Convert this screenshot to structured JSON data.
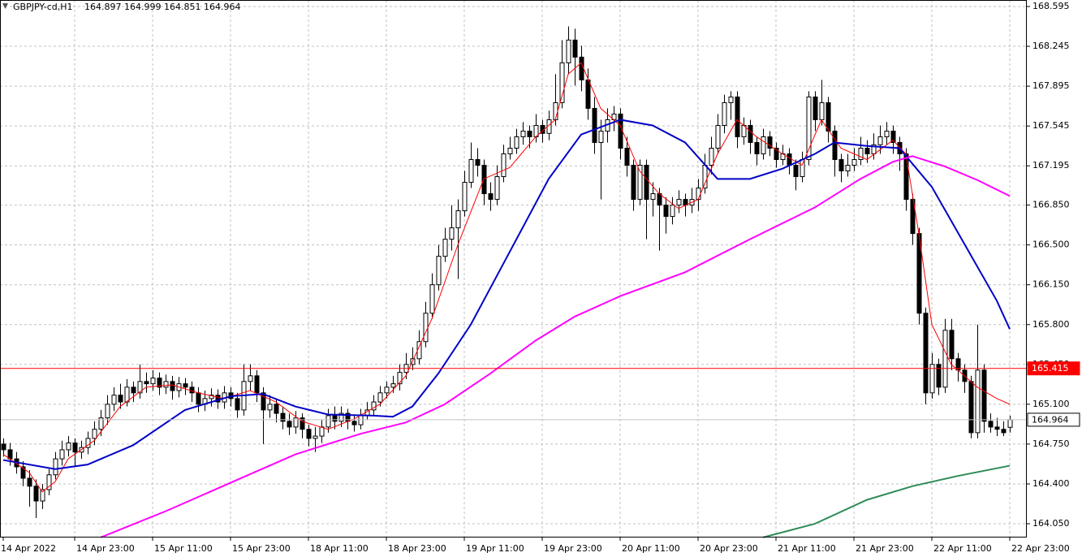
{
  "chart_data": {
    "type": "candlestick",
    "symbol": "GBPJPY-cd,H1",
    "ylim": [
      163.929,
      168.652
    ],
    "yticks": [
      168.595,
      168.245,
      167.895,
      167.545,
      167.195,
      {
        "value": 166.85,
        "label": "166.850"
      },
      {
        "value": 166.5,
        "label": "166.500"
      },
      {
        "value": 166.15,
        "label": "166.150"
      },
      {
        "value": 165.8,
        "label": "165.800"
      },
      {
        "value": 165.45,
        "label": "165.450"
      },
      {
        "value": 165.1,
        "label": "165.100"
      },
      {
        "value": 164.75,
        "label": "164.750"
      },
      {
        "value": 164.4,
        "label": "164.400"
      },
      {
        "value": 164.05,
        "label": "164.050"
      }
    ],
    "grid": true,
    "categories": [
      "14 Apr 2022",
      null,
      null,
      null,
      null,
      null,
      null,
      null,
      null,
      null,
      null,
      "14 Apr 23:00",
      null,
      null,
      null,
      null,
      null,
      null,
      null,
      null,
      null,
      null,
      null,
      "15 Apr 11:00",
      null,
      null,
      null,
      null,
      null,
      null,
      null,
      null,
      null,
      null,
      null,
      "15 Apr 23:00",
      null,
      null,
      null,
      null,
      null,
      null,
      null,
      null,
      null,
      null,
      null,
      "18 Apr 11:00",
      null,
      null,
      null,
      null,
      null,
      null,
      null,
      null,
      null,
      null,
      null,
      "18 Apr 23:00",
      null,
      null,
      null,
      null,
      null,
      null,
      null,
      null,
      null,
      null,
      null,
      "19 Apr 11:00",
      null,
      null,
      null,
      null,
      null,
      null,
      null,
      null,
      null,
      null,
      null,
      "19 Apr 23:00",
      null,
      null,
      null,
      null,
      null,
      null,
      null,
      null,
      null,
      null,
      null,
      "20 Apr 11:00",
      null,
      null,
      null,
      null,
      null,
      null,
      null,
      null,
      null,
      null,
      null,
      "20 Apr 23:00",
      null,
      null,
      null,
      null,
      null,
      null,
      null,
      null,
      null,
      null,
      null,
      "21 Apr 11:00",
      null,
      null,
      null,
      null,
      null,
      null,
      null,
      null,
      null,
      null,
      null,
      "21 Apr 23:00",
      null,
      null,
      null,
      null,
      null,
      null,
      null,
      null,
      null,
      null,
      null,
      "22 Apr 11:00",
      null,
      null,
      null,
      null,
      null,
      null,
      null,
      null,
      null,
      null,
      null,
      "22 Apr 23:00"
    ],
    "ohlc": [
      [
        164.75,
        164.8,
        164.64,
        164.7
      ],
      [
        164.7,
        164.76,
        164.56,
        164.62
      ],
      [
        164.62,
        164.68,
        164.49,
        164.55
      ],
      [
        164.55,
        164.6,
        164.38,
        164.45
      ],
      [
        164.45,
        164.52,
        164.2,
        164.38
      ],
      [
        164.38,
        164.44,
        164.1,
        164.25
      ],
      [
        164.25,
        164.4,
        164.18,
        164.35
      ],
      [
        164.35,
        164.53,
        164.3,
        164.48
      ],
      [
        164.48,
        164.68,
        164.44,
        164.62
      ],
      [
        164.62,
        164.78,
        164.56,
        164.7
      ],
      [
        164.7,
        164.82,
        164.64,
        164.76
      ],
      [
        164.76,
        164.8,
        164.55,
        164.68
      ],
      [
        164.68,
        164.78,
        164.62,
        164.72
      ],
      [
        164.72,
        164.86,
        164.66,
        164.8
      ],
      [
        164.8,
        164.95,
        164.74,
        164.88
      ],
      [
        164.88,
        165.05,
        164.82,
        164.98
      ],
      [
        164.98,
        165.18,
        164.92,
        165.1
      ],
      [
        165.1,
        165.25,
        165.04,
        165.18
      ],
      [
        165.18,
        165.28,
        165.06,
        165.12
      ],
      [
        165.12,
        165.32,
        165.08,
        165.25
      ],
      [
        165.25,
        165.3,
        165.12,
        165.2
      ],
      [
        165.2,
        165.45,
        165.15,
        165.3
      ],
      [
        165.3,
        165.38,
        165.2,
        165.28
      ],
      [
        165.28,
        165.4,
        165.22,
        165.33
      ],
      [
        165.33,
        165.38,
        165.18,
        165.25
      ],
      [
        165.25,
        165.36,
        165.19,
        165.3
      ],
      [
        165.3,
        165.35,
        165.14,
        165.22
      ],
      [
        165.22,
        165.34,
        165.16,
        165.28
      ],
      [
        165.28,
        165.33,
        165.18,
        165.25
      ],
      [
        165.25,
        165.3,
        165.12,
        165.2
      ],
      [
        165.2,
        165.25,
        165.03,
        165.1
      ],
      [
        165.1,
        165.22,
        165.04,
        165.15
      ],
      [
        165.15,
        165.24,
        165.08,
        165.18
      ],
      [
        165.18,
        165.23,
        165.06,
        165.12
      ],
      [
        165.12,
        165.26,
        165.06,
        165.2
      ],
      [
        165.2,
        165.25,
        165.08,
        165.15
      ],
      [
        165.15,
        165.2,
        164.98,
        165.05
      ],
      [
        165.05,
        165.45,
        165.0,
        165.3
      ],
      [
        165.3,
        165.45,
        165.22,
        165.35
      ],
      [
        165.35,
        165.4,
        165.12,
        165.2
      ],
      [
        165.2,
        165.25,
        164.75,
        165.05
      ],
      [
        165.05,
        165.18,
        164.98,
        165.1
      ],
      [
        165.1,
        165.15,
        164.94,
        165.02
      ],
      [
        165.02,
        165.08,
        164.88,
        164.95
      ],
      [
        164.95,
        165.02,
        164.83,
        164.9
      ],
      [
        164.9,
        165.04,
        164.84,
        164.98
      ],
      [
        164.98,
        165.02,
        164.8,
        164.88
      ],
      [
        164.88,
        164.92,
        164.73,
        164.8
      ],
      [
        164.8,
        164.9,
        164.68,
        164.82
      ],
      [
        164.82,
        164.96,
        164.76,
        164.9
      ],
      [
        164.9,
        165.06,
        164.85,
        165.0
      ],
      [
        165.0,
        165.08,
        164.88,
        164.95
      ],
      [
        164.95,
        165.08,
        164.9,
        165.02
      ],
      [
        165.02,
        165.06,
        164.88,
        164.95
      ],
      [
        164.95,
        165.0,
        164.86,
        164.92
      ],
      [
        164.92,
        165.06,
        164.88,
        165.0
      ],
      [
        165.0,
        165.12,
        164.96,
        165.05
      ],
      [
        165.05,
        165.18,
        165.0,
        165.12
      ],
      [
        165.12,
        165.26,
        165.08,
        165.2
      ],
      [
        165.2,
        165.3,
        165.15,
        165.25
      ],
      [
        165.25,
        165.35,
        165.2,
        165.28
      ],
      [
        165.28,
        165.45,
        165.22,
        165.38
      ],
      [
        165.38,
        165.55,
        165.32,
        165.45
      ],
      [
        165.45,
        165.6,
        165.4,
        165.5
      ],
      [
        165.5,
        165.75,
        165.45,
        165.65
      ],
      [
        165.65,
        166.0,
        165.6,
        165.9
      ],
      [
        165.9,
        166.25,
        165.85,
        166.15
      ],
      [
        166.15,
        166.5,
        166.1,
        166.4
      ],
      [
        166.4,
        166.65,
        166.35,
        166.55
      ],
      [
        166.55,
        166.85,
        166.45,
        166.65
      ],
      [
        166.65,
        166.9,
        166.2,
        166.8
      ],
      [
        166.8,
        167.15,
        166.75,
        167.05
      ],
      [
        167.05,
        167.4,
        167.0,
        167.25
      ],
      [
        167.25,
        167.35,
        167.1,
        167.2
      ],
      [
        167.2,
        167.25,
        166.85,
        166.95
      ],
      [
        166.95,
        167.05,
        166.8,
        166.9
      ],
      [
        166.9,
        167.2,
        166.85,
        167.1
      ],
      [
        167.1,
        167.38,
        167.05,
        167.3
      ],
      [
        167.3,
        167.45,
        167.25,
        167.35
      ],
      [
        167.35,
        167.52,
        167.3,
        167.45
      ],
      [
        167.45,
        167.58,
        167.38,
        167.5
      ],
      [
        167.5,
        167.55,
        167.35,
        167.45
      ],
      [
        167.45,
        167.65,
        167.4,
        167.55
      ],
      [
        167.55,
        167.6,
        167.4,
        167.48
      ],
      [
        167.48,
        167.68,
        167.42,
        167.6
      ],
      [
        167.6,
        168.0,
        167.55,
        167.75
      ],
      [
        167.75,
        168.3,
        167.7,
        168.1
      ],
      [
        168.1,
        168.42,
        168.0,
        168.3
      ],
      [
        168.3,
        168.4,
        167.9,
        168.15
      ],
      [
        168.15,
        168.25,
        167.85,
        167.95
      ],
      [
        167.95,
        168.05,
        167.6,
        167.7
      ],
      [
        167.7,
        167.8,
        167.3,
        167.4
      ],
      [
        167.4,
        167.6,
        166.9,
        167.5
      ],
      [
        167.5,
        167.7,
        167.4,
        167.6
      ],
      [
        167.6,
        167.72,
        167.5,
        167.65
      ],
      [
        167.65,
        167.7,
        167.25,
        167.35
      ],
      [
        167.35,
        167.45,
        167.1,
        167.2
      ],
      [
        167.2,
        167.25,
        166.8,
        166.9
      ],
      [
        166.9,
        167.25,
        166.85,
        167.2
      ],
      [
        167.2,
        167.25,
        166.55,
        166.9
      ],
      [
        166.9,
        167.05,
        166.75,
        166.95
      ],
      [
        166.95,
        167.0,
        166.45,
        166.85
      ],
      [
        166.85,
        166.92,
        166.6,
        166.75
      ],
      [
        166.75,
        166.92,
        166.68,
        166.85
      ],
      [
        166.85,
        166.98,
        166.78,
        166.9
      ],
      [
        166.9,
        166.95,
        166.75,
        166.85
      ],
      [
        166.85,
        167.0,
        166.78,
        166.9
      ],
      [
        166.9,
        167.08,
        166.8,
        167.0
      ],
      [
        167.0,
        167.3,
        166.95,
        167.2
      ],
      [
        167.2,
        167.45,
        167.12,
        167.35
      ],
      [
        167.35,
        167.65,
        167.3,
        167.55
      ],
      [
        167.55,
        167.82,
        167.48,
        167.75
      ],
      [
        167.75,
        167.85,
        167.6,
        167.8
      ],
      [
        167.8,
        167.85,
        167.35,
        167.45
      ],
      [
        167.45,
        167.62,
        167.38,
        167.55
      ],
      [
        167.55,
        167.6,
        167.3,
        167.4
      ],
      [
        167.4,
        167.45,
        167.2,
        167.3
      ],
      [
        167.3,
        167.52,
        167.25,
        167.45
      ],
      [
        167.45,
        167.5,
        167.28,
        167.35
      ],
      [
        167.35,
        167.4,
        167.18,
        167.25
      ],
      [
        167.25,
        167.38,
        167.2,
        167.3
      ],
      [
        167.3,
        167.35,
        167.12,
        167.2
      ],
      [
        167.2,
        167.25,
        166.98,
        167.1
      ],
      [
        167.1,
        167.32,
        167.05,
        167.25
      ],
      [
        167.25,
        167.85,
        167.2,
        167.8
      ],
      [
        167.8,
        167.85,
        167.5,
        167.6
      ],
      [
        167.6,
        167.95,
        167.55,
        167.75
      ],
      [
        167.75,
        167.8,
        167.4,
        167.5
      ],
      [
        167.5,
        167.55,
        167.1,
        167.25
      ],
      [
        167.25,
        167.3,
        167.05,
        167.15
      ],
      [
        167.15,
        167.3,
        167.1,
        167.2
      ],
      [
        167.2,
        167.35,
        167.15,
        167.25
      ],
      [
        167.25,
        167.45,
        167.2,
        167.35
      ],
      [
        167.35,
        167.42,
        167.22,
        167.3
      ],
      [
        167.3,
        167.48,
        167.25,
        167.38
      ],
      [
        167.38,
        167.55,
        167.3,
        167.45
      ],
      [
        167.45,
        167.58,
        167.38,
        167.5
      ],
      [
        167.5,
        167.55,
        167.3,
        167.4
      ],
      [
        167.4,
        167.45,
        167.15,
        167.3
      ],
      [
        167.3,
        167.35,
        166.8,
        166.9
      ],
      [
        166.9,
        166.95,
        166.5,
        166.6
      ],
      [
        166.6,
        166.65,
        165.8,
        165.9
      ],
      [
        165.9,
        165.95,
        165.1,
        165.2
      ],
      [
        165.2,
        165.55,
        165.15,
        165.45
      ],
      [
        165.45,
        165.5,
        165.18,
        165.25
      ],
      [
        165.25,
        165.85,
        165.2,
        165.75
      ],
      [
        165.75,
        165.85,
        165.4,
        165.5
      ],
      [
        165.5,
        165.55,
        165.3,
        165.4
      ],
      [
        165.4,
        165.45,
        165.2,
        165.3
      ],
      [
        165.3,
        165.35,
        164.8,
        164.85
      ],
      [
        164.85,
        165.8,
        164.8,
        165.4
      ],
      [
        165.4,
        165.45,
        164.85,
        164.95
      ],
      [
        164.95,
        165.02,
        164.85,
        164.9
      ],
      [
        164.9,
        164.98,
        164.82,
        164.88
      ],
      [
        164.88,
        164.95,
        164.82,
        164.85
      ],
      [
        164.897,
        164.999,
        164.851,
        164.964
      ]
    ],
    "series": [
      {
        "color": "#ff0000",
        "x": [
          0,
          4,
          6,
          8,
          10,
          14,
          18,
          22,
          26,
          30,
          34,
          38,
          42,
          46,
          50,
          54,
          58,
          62,
          66,
          70,
          74,
          78,
          82,
          85,
          87,
          89,
          92,
          95,
          98,
          101,
          104,
          107,
          110,
          113,
          116,
          120,
          123,
          126,
          129,
          133,
          137,
          139,
          141,
          143,
          146,
          150,
          153,
          155
        ],
        "values": [
          164.66,
          164.5,
          164.33,
          164.42,
          164.62,
          164.78,
          165.08,
          165.25,
          165.27,
          165.2,
          165.15,
          165.22,
          165.12,
          164.95,
          164.88,
          164.97,
          165.1,
          165.35,
          165.85,
          166.5,
          167.08,
          167.18,
          167.45,
          167.6,
          168.0,
          168.1,
          167.7,
          167.55,
          167.15,
          166.95,
          166.82,
          166.9,
          167.3,
          167.6,
          167.45,
          167.3,
          167.2,
          167.6,
          167.35,
          167.25,
          167.42,
          167.3,
          166.6,
          165.8,
          165.45,
          165.25,
          165.15,
          165.1
        ]
      },
      {
        "color": "#0000c8",
        "x": [
          0,
          8,
          13,
          20,
          28,
          35,
          40,
          45,
          50,
          57,
          60,
          63,
          67,
          72,
          78,
          84,
          89,
          95,
          100,
          105,
          110,
          115,
          120,
          125,
          128,
          133,
          138,
          143,
          148,
          153,
          155
        ],
        "values": [
          164.61,
          164.53,
          164.57,
          164.74,
          165.05,
          165.17,
          165.19,
          165.08,
          165.01,
          165.0,
          164.99,
          165.08,
          165.37,
          165.8,
          166.44,
          167.08,
          167.47,
          167.6,
          167.55,
          167.4,
          167.08,
          167.08,
          167.17,
          167.3,
          167.4,
          167.37,
          167.35,
          167.01,
          166.51,
          166.01,
          165.76
        ]
      },
      {
        "color": "#ff00ff",
        "x": [
          15,
          25,
          35,
          45,
          55,
          62,
          68,
          75,
          82,
          88,
          95,
          105,
          115,
          125,
          132,
          137,
          140,
          145,
          150,
          155
        ],
        "values": [
          163.93,
          164.16,
          164.41,
          164.66,
          164.84,
          164.94,
          165.1,
          165.37,
          165.66,
          165.87,
          166.05,
          166.26,
          166.55,
          166.83,
          167.08,
          167.23,
          167.28,
          167.19,
          167.07,
          166.93
        ]
      },
      {
        "color": "#2e8b57",
        "x": [
          117,
          125,
          133,
          140,
          147,
          155
        ],
        "values": [
          163.93,
          164.05,
          164.26,
          164.38,
          164.47,
          164.56
        ]
      }
    ],
    "price_lines": [
      {
        "value": 165.415,
        "color": "#ff0000"
      },
      {
        "value": 164.964,
        "color": "#c0c0c0"
      }
    ]
  }
}
